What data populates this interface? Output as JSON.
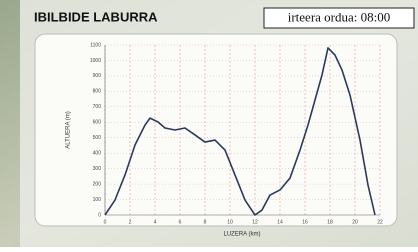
{
  "chart_data": {
    "type": "line",
    "title": "IBILBIDE LABURRA",
    "subtitle": "irteera ordua: 08:00",
    "x_label": "LUZERA (km)",
    "y_label": "ALTUERA (m)",
    "x": [
      0,
      0.8,
      1.6,
      2.4,
      3.2,
      3.6,
      4.24,
      4.8,
      5.6,
      6.4,
      7.2,
      8,
      8.8,
      9.6,
      10.4,
      11.2,
      12,
      12.56,
      13.2,
      14,
      14.8,
      15.6,
      16.24,
      16.8,
      17.36,
      17.84,
      18.4,
      18.96,
      19.6,
      20.4,
      21.04,
      21.6
    ],
    "series": [
      {
        "color": "#2b3a5c",
        "values": [
          0,
          97,
          259,
          453,
          582,
          627,
          602,
          563,
          550,
          563,
          518,
          472,
          485,
          420,
          259,
          97,
          0,
          32,
          129,
          162,
          239,
          420,
          582,
          744,
          906,
          1081,
          1035,
          938,
          776,
          485,
          194,
          0
        ]
      }
    ],
    "xlim": [
      0,
      22
    ],
    "xticks": [
      0,
      2,
      4,
      6,
      8,
      10,
      12,
      14,
      16,
      18,
      20,
      22
    ],
    "ylim": [
      0,
      1100
    ],
    "yticks": [
      0,
      100,
      200,
      300,
      400,
      500,
      600,
      700,
      800,
      900,
      1000,
      1100
    ],
    "grid": true,
    "grid_color": "#e59a9a"
  }
}
